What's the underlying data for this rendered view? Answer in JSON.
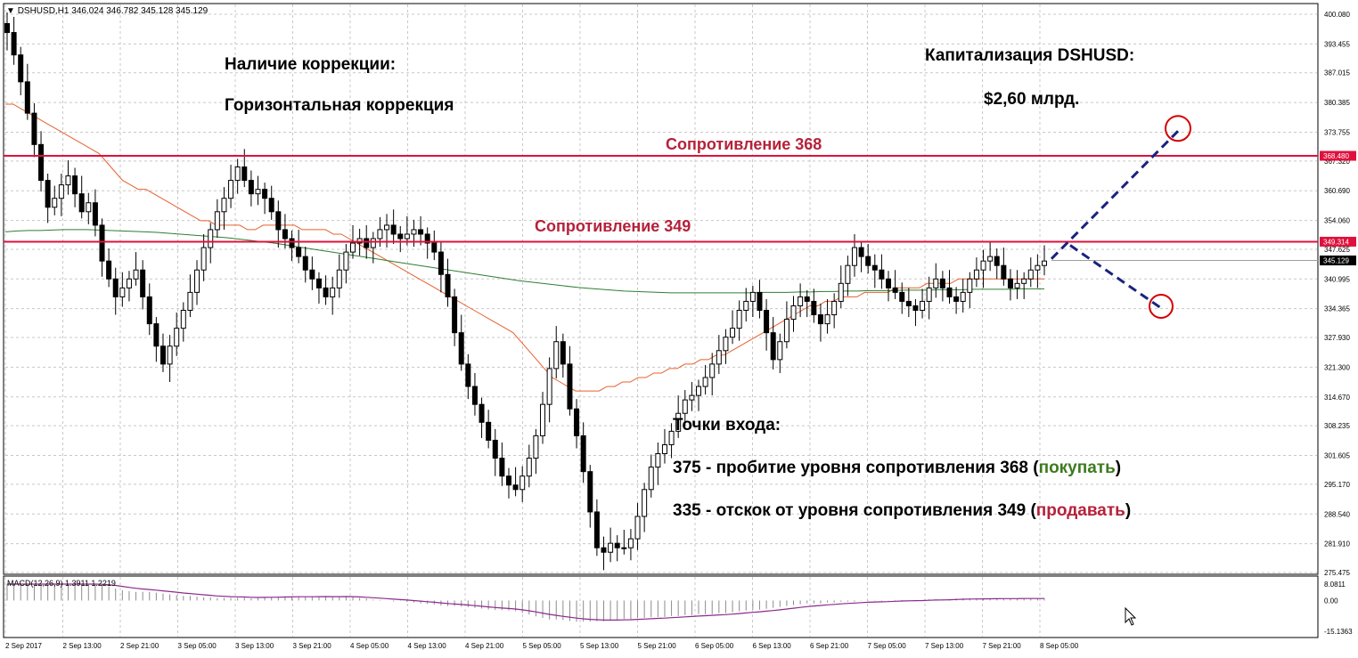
{
  "header": {
    "symbol": "DSHUSD,H1",
    "ohlc": "346.024 346.782 345.128 345.129"
  },
  "annotations": {
    "correction_title": "Наличие коррекции:",
    "correction_value": "Горизонтальная коррекция",
    "cap_title": "Капитализация DSHUSD:",
    "cap_value": "$2,60 млрд.",
    "resistance_368": "Сопротивление 368",
    "resistance_349": "Сопротивление 349",
    "entry_title": "Точки входа:",
    "entry1_prefix": "375 - пробитие уровня сопротивления 368 (",
    "entry1_action": "покупать",
    "entry1_suffix": ")",
    "entry2_prefix": "335 - отскок от уровня сопротивления 349 (",
    "entry2_action": "продавать",
    "entry2_suffix": ")"
  },
  "macd": {
    "label": "MACD(12,26,9) 1.3911 1.2219",
    "ticks": [
      "8.0811",
      "0.00",
      "-15.1363"
    ],
    "ylim": [
      -15.1363,
      8.0811
    ],
    "signal_color": "#8b2a8b",
    "hist_color": "#8c8c8c"
  },
  "colors": {
    "bull": "#ffffff",
    "bear": "#000000",
    "ma_fast": "#e8602c",
    "ma_slow": "#2e7d32",
    "resistance": "#e0103c",
    "forecast": "#1a237e",
    "circle": "#d50000",
    "grid": "#c8c8c8"
  },
  "chart_data": {
    "type": "candlestick",
    "ylim": [
      275.475,
      400.08
    ],
    "y_ticks": [
      "400.080",
      "393.455",
      "387.015",
      "380.385",
      "373.755",
      "367.320",
      "360.690",
      "354.060",
      "347.625",
      "340.995",
      "334.365",
      "327.930",
      "321.300",
      "314.670",
      "308.235",
      "301.605",
      "295.170",
      "288.540",
      "281.910",
      "275.475"
    ],
    "x_ticks": [
      "2 Sep 2017",
      "2 Sep 13:00",
      "2 Sep 21:00",
      "3 Sep 05:00",
      "3 Sep 13:00",
      "3 Sep 21:00",
      "4 Sep 05:00",
      "4 Sep 13:00",
      "4 Sep 21:00",
      "5 Sep 05:00",
      "5 Sep 13:00",
      "5 Sep 21:00",
      "6 Sep 05:00",
      "6 Sep 13:00",
      "6 Sep 21:00",
      "7 Sep 05:00",
      "7 Sep 13:00",
      "7 Sep 21:00",
      "8 Sep 05:00"
    ],
    "price_labels": [
      {
        "text": "368.480",
        "value": 368.48,
        "bg": "#e0103c",
        "fg": "#ffffff"
      },
      {
        "text": "349.314",
        "value": 349.314,
        "bg": "#e0103c",
        "fg": "#ffffff"
      },
      {
        "text": "345.129",
        "value": 345.129,
        "bg": "#000000",
        "fg": "#ffffff"
      }
    ],
    "resistance_levels": [
      368.48,
      349.314
    ],
    "forecast": [
      {
        "from": 345.5,
        "to": 374.0,
        "label": "buy"
      },
      {
        "from": 348.5,
        "to": 334.5,
        "label": "sell"
      }
    ],
    "closes": [
      396,
      391,
      385,
      378,
      371,
      363,
      357,
      359,
      362,
      364,
      360,
      356,
      358,
      353,
      345,
      341,
      337,
      339,
      341,
      343,
      337,
      331,
      326,
      322,
      326,
      330,
      334,
      338,
      343,
      348,
      352,
      356,
      359,
      363,
      366,
      363,
      360,
      361,
      359,
      356,
      352,
      350,
      348,
      346,
      343,
      341,
      339,
      337,
      339,
      343,
      347,
      349,
      350,
      348,
      350,
      352,
      353,
      351,
      350,
      351,
      352,
      351,
      349,
      347,
      342,
      337,
      329,
      322,
      317,
      313,
      309,
      305,
      301,
      297,
      295,
      294,
      297,
      301,
      306,
      313,
      321,
      327,
      322,
      312,
      306,
      298,
      289,
      281,
      280,
      282,
      281,
      281,
      283,
      288,
      294,
      299,
      302,
      304,
      307,
      311,
      314,
      315,
      317,
      319,
      322,
      325,
      328,
      330,
      334,
      336,
      338,
      334,
      329,
      323,
      327,
      332,
      335,
      337,
      336,
      333,
      331,
      333,
      336,
      340,
      344,
      348,
      346,
      344,
      343,
      341,
      339,
      338,
      336,
      335,
      334,
      336,
      339,
      341,
      339,
      337,
      336,
      338,
      341,
      343,
      345,
      346,
      344,
      341,
      339,
      340,
      341,
      343,
      344,
      345
    ],
    "ma_fast": [
      380,
      380,
      379,
      378,
      377,
      376,
      375,
      374,
      373,
      372,
      371,
      370,
      369,
      367,
      365,
      363,
      362,
      361,
      361,
      360,
      359,
      358,
      357,
      356,
      355,
      354,
      354,
      353,
      353,
      353,
      353,
      352,
      352,
      353,
      353,
      353,
      353,
      353,
      352,
      352,
      352,
      352,
      351,
      351,
      350,
      349,
      348,
      347,
      346,
      345,
      344,
      343,
      342,
      341,
      340,
      339,
      338,
      337,
      336,
      335,
      334,
      333,
      332,
      331,
      330,
      329,
      327,
      325,
      323,
      321,
      319,
      318,
      317,
      316,
      316,
      316,
      316,
      317,
      317,
      318,
      318,
      319,
      319,
      320,
      320,
      321,
      321,
      322,
      322,
      323,
      323,
      324,
      324,
      325,
      326,
      327,
      328,
      329,
      330,
      331,
      332,
      333,
      334,
      335,
      335,
      336,
      336,
      337,
      337,
      337,
      338,
      338,
      338,
      338,
      339,
      339,
      339,
      339,
      340,
      340,
      340,
      340,
      341,
      341,
      341,
      341,
      341,
      341,
      341,
      341,
      341,
      341,
      341,
      341
    ],
    "ma_slow": [
      351.5,
      351.7,
      351.8,
      351.8,
      351.9,
      352,
      352,
      352,
      351.9,
      351.8,
      351.7,
      351.6,
      351.5,
      351.4,
      351.2,
      351,
      350.8,
      350.6,
      350.4,
      350.2,
      349.9,
      349.6,
      349.3,
      349,
      348.6,
      348.2,
      347.8,
      347.4,
      347,
      346.6,
      346.2,
      345.8,
      345.4,
      345,
      344.6,
      344.2,
      343.8,
      343.4,
      343,
      342.6,
      342.2,
      341.8,
      341.4,
      341,
      340.6,
      340.3,
      340,
      339.7,
      339.4,
      339.1,
      338.9,
      338.7,
      338.5,
      338.3,
      338.2,
      338.1,
      338,
      337.9,
      337.9,
      337.9,
      337.9,
      337.9,
      337.9,
      337.9,
      337.9,
      338,
      338,
      338,
      338.1,
      338.1,
      338.2,
      338.2,
      338.3,
      338.3,
      338.4,
      338.4,
      338.4,
      338.5,
      338.5,
      338.5,
      338.6,
      338.6,
      338.6,
      338.7,
      338.7,
      338.7,
      338.7,
      338.8,
      338.8,
      338.8
    ]
  }
}
